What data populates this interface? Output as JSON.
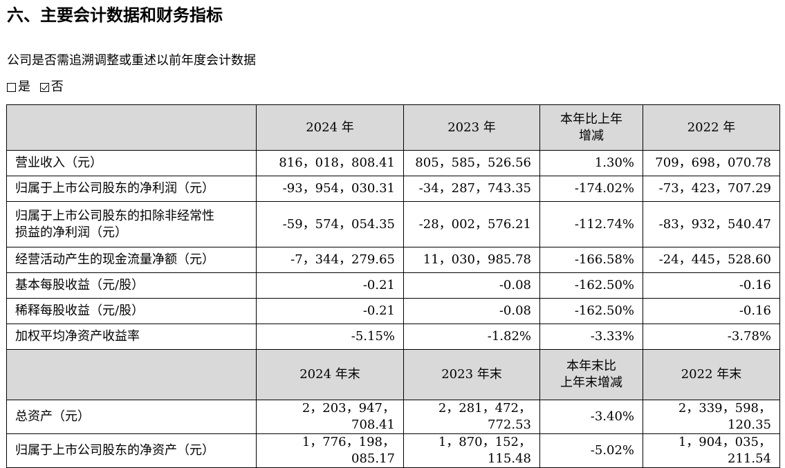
{
  "section_title": "六、主要会计数据和财务指标",
  "question": "公司是否需追溯调整或重述以前年度会计数据",
  "options": [
    {
      "label": "是",
      "checked": false
    },
    {
      "label": "否",
      "checked": true
    }
  ],
  "header1": {
    "col1": "2024 年",
    "col2": "2023 年",
    "col3_line1": "本年比上年",
    "col3_line2": "增减",
    "col4": "2022 年"
  },
  "rows1": [
    {
      "label": "营业收入（元）",
      "v2024": "816，018，808.41",
      "v2023": "805，585，526.56",
      "change": "1.30%",
      "v2022": "709，698，070.78"
    },
    {
      "label": "归属于上市公司股东的净利润（元）",
      "v2024": "-93，954，030.31",
      "v2023": "-34，287，743.35",
      "change": "-174.02%",
      "v2022": "-73，423，707.29"
    },
    {
      "label_line1": "归属于上市公司股东的扣除非经常性",
      "label_line2": "损益的净利润（元）",
      "v2024": "-59，574，054.35",
      "v2023": "-28，002，576.21",
      "change": "-112.74%",
      "v2022": "-83，932，540.47"
    },
    {
      "label": "经营活动产生的现金流量净额（元）",
      "v2024": "-7，344，279.65",
      "v2023": "11，030，985.78",
      "change": "-166.58%",
      "v2022": "-24，445，528.60"
    },
    {
      "label": "基本每股收益（元/股）",
      "v2024": "-0.21",
      "v2023": "-0.08",
      "change": "-162.50%",
      "v2022": "-0.16"
    },
    {
      "label": "稀释每股收益（元/股）",
      "v2024": "-0.21",
      "v2023": "-0.08",
      "change": "-162.50%",
      "v2022": "-0.16"
    },
    {
      "label": "加权平均净资产收益率",
      "v2024": "-5.15%",
      "v2023": "-1.82%",
      "change": "-3.33%",
      "v2022": "-3.78%"
    }
  ],
  "header2": {
    "col1": "2024 年末",
    "col2": "2023 年末",
    "col3_line1": "本年末比",
    "col3_line2": "上年末增减",
    "col4": "2022 年末"
  },
  "rows2": [
    {
      "label": "总资产（元）",
      "v2024": "2，203，947，708.41",
      "v2023": "2，281，472，772.53",
      "change": "-3.40%",
      "v2022": "2，339，598，120.35"
    },
    {
      "label": "归属于上市公司股东的净资产（元）",
      "v2024": "1，776，198，085.17",
      "v2023": "1，870，152，115.48",
      "change": "-5.02%",
      "v2022": "1，904，035，211.54"
    }
  ]
}
